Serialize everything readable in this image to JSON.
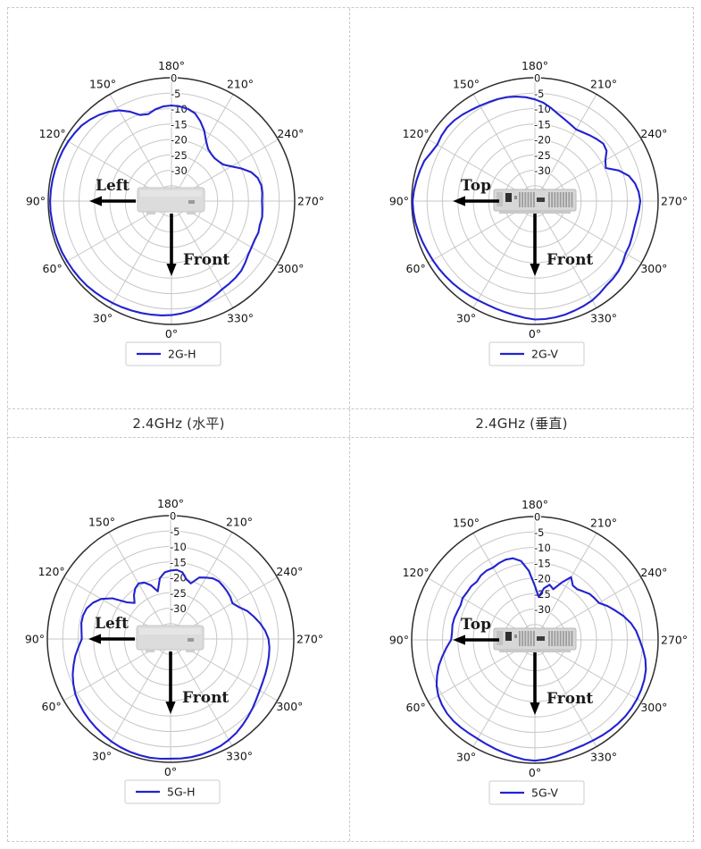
{
  "style": {
    "curve_blue": "#2222d0",
    "grid_gray": "#c7c7c7",
    "outer_ring": "#2e2e2e",
    "border_dash": "#c9c9c9",
    "label_text": "#141414"
  },
  "table": {
    "captions": [
      "2.4GHz (水平)",
      "2.4GHz (垂直)"
    ]
  },
  "chart_data": [
    {
      "type": "polar-line",
      "id": "2G-H",
      "legend_label": "2G-H",
      "device": "front-view",
      "annotations": {
        "side_label": "Left",
        "front_label": "Front"
      },
      "angle_ticks_deg": [
        0,
        30,
        60,
        90,
        120,
        150,
        180,
        210,
        240,
        270,
        300,
        330
      ],
      "angle_tick_labels": [
        "0°",
        "30°",
        "60°",
        "90°",
        "120°",
        "150°",
        "180°",
        "210°",
        "240°",
        "270°",
        "300°",
        "330°"
      ],
      "r_ticks": [
        0,
        -5,
        -10,
        -15,
        -20,
        -25,
        -30
      ],
      "r_tick_labels": [
        "0",
        "-5",
        "-10",
        "-15",
        "-20",
        "-25",
        "-30"
      ],
      "r_range": [
        -40,
        0
      ],
      "angle_step_deg": 5,
      "values_db": [
        -3.0,
        -2.8,
        -2.6,
        -2.4,
        -2.2,
        -2.0,
        -1.8,
        -1.6,
        -1.4,
        -1.2,
        -1.1,
        -1.0,
        -0.9,
        -0.8,
        -0.8,
        -0.7,
        -0.7,
        -0.6,
        -0.6,
        -0.7,
        -0.8,
        -0.9,
        -1.0,
        -1.1,
        -1.3,
        -1.6,
        -1.9,
        -2.6,
        -3.5,
        -4.6,
        -6.0,
        -8.0,
        -10.3,
        -10.8,
        -9.8,
        -9.2,
        -9.0,
        -9.2,
        -9.6,
        -10.5,
        -12.5,
        -14.8,
        -17.5,
        -19.3,
        -20.0,
        -20.3,
        -20.0,
        -19.4,
        -17.5,
        -15.0,
        -12.5,
        -11.0,
        -10.4,
        -10.4,
        -10.6,
        -10.4,
        -10.1,
        -10.3,
        -10.0,
        -10.2,
        -10.0,
        -9.6,
        -8.8,
        -8.0,
        -7.6,
        -7.3,
        -7.0,
        -6.3,
        -5.5,
        -4.6,
        -3.9,
        -3.4
      ]
    },
    {
      "type": "polar-line",
      "id": "2G-V",
      "legend_label": "2G-V",
      "device": "top-view",
      "annotations": {
        "side_label": "Top",
        "front_label": "Front"
      },
      "angle_ticks_deg": [
        0,
        30,
        60,
        90,
        120,
        150,
        180,
        210,
        240,
        270,
        300,
        330
      ],
      "angle_tick_labels": [
        "0°",
        "30°",
        "60°",
        "90°",
        "120°",
        "150°",
        "180°",
        "210°",
        "240°",
        "270°",
        "300°",
        "330°"
      ],
      "r_ticks": [
        0,
        -5,
        -10,
        -15,
        -20,
        -25,
        -30
      ],
      "r_tick_labels": [
        "0",
        "-5",
        "-10",
        "-15",
        "-20",
        "-25",
        "-30"
      ],
      "r_range": [
        -40,
        0
      ],
      "angle_step_deg": 5,
      "values_db": [
        -1.6,
        -2.0,
        -2.4,
        -2.7,
        -2.9,
        -3.0,
        -2.9,
        -2.7,
        -2.5,
        -2.3,
        -2.1,
        -1.9,
        -1.7,
        -1.5,
        -1.2,
        -0.9,
        -0.6,
        -0.4,
        -0.3,
        -0.6,
        -1.0,
        -1.4,
        -1.8,
        -2.8,
        -3.4,
        -3.0,
        -2.8,
        -3.0,
        -3.4,
        -3.9,
        -4.3,
        -4.6,
        -4.8,
        -5.1,
        -5.6,
        -6.2,
        -7.0,
        -8.0,
        -9.4,
        -10.8,
        -11.8,
        -12.6,
        -13.2,
        -12.8,
        -12.2,
        -11.6,
        -11.0,
        -11.6,
        -13.6,
        -14.6,
        -11.0,
        -8.4,
        -7.0,
        -6.2,
        -5.8,
        -6.1,
        -6.5,
        -6.6,
        -6.4,
        -6.1,
        -6.0,
        -5.2,
        -4.6,
        -4.3,
        -4.1,
        -3.4,
        -2.8,
        -2.5,
        -2.2,
        -1.9,
        -1.7,
        -1.6
      ]
    },
    {
      "type": "polar-line",
      "id": "5G-H",
      "legend_label": "5G-H",
      "device": "front-view",
      "annotations": {
        "side_label": "Left",
        "front_label": "Front"
      },
      "angle_ticks_deg": [
        0,
        30,
        60,
        90,
        120,
        150,
        180,
        210,
        240,
        270,
        300,
        330
      ],
      "angle_tick_labels": [
        "0°",
        "30°",
        "60°",
        "90°",
        "120°",
        "150°",
        "180°",
        "210°",
        "240°",
        "270°",
        "300°",
        "330°"
      ],
      "r_ticks": [
        0,
        -5,
        -10,
        -15,
        -20,
        -25,
        -30
      ],
      "r_tick_labels": [
        "0",
        "-5",
        "-10",
        "-15",
        "-20",
        "-25",
        "-30"
      ],
      "r_range": [
        -40,
        0
      ],
      "angle_step_deg": 5,
      "values_db": [
        -1.2,
        -1.0,
        -0.9,
        -1.0,
        -1.1,
        -1.3,
        -1.6,
        -2.0,
        -2.4,
        -2.8,
        -3.2,
        -3.7,
        -4.3,
        -5.2,
        -6.2,
        -7.4,
        -8.6,
        -10.0,
        -11.2,
        -11.0,
        -10.6,
        -10.6,
        -11.0,
        -12.2,
        -14.0,
        -17.0,
        -21.5,
        -23.5,
        -21.5,
        -20.0,
        -19.2,
        -19.8,
        -21.5,
        -24.0,
        -20.0,
        -18.3,
        -17.8,
        -17.5,
        -18.0,
        -20.0,
        -20.8,
        -18.0,
        -17.0,
        -16.0,
        -15.6,
        -15.8,
        -16.0,
        -16.3,
        -16.8,
        -15.5,
        -13.5,
        -12.0,
        -10.5,
        -9.2,
        -8.2,
        -7.8,
        -7.6,
        -7.4,
        -7.2,
        -7.0,
        -6.6,
        -6.0,
        -5.2,
        -4.4,
        -3.6,
        -2.8,
        -2.2,
        -1.7,
        -1.4,
        -1.2,
        -1.1,
        -1.1
      ]
    },
    {
      "type": "polar-line",
      "id": "5G-V",
      "legend_label": "5G-V",
      "device": "top-view",
      "annotations": {
        "side_label": "Top",
        "front_label": "Front"
      },
      "angle_ticks_deg": [
        0,
        30,
        60,
        90,
        120,
        150,
        180,
        210,
        240,
        270,
        300,
        330
      ],
      "angle_tick_labels": [
        "0°",
        "30°",
        "60°",
        "90°",
        "120°",
        "150°",
        "180°",
        "210°",
        "240°",
        "270°",
        "300°",
        "330°"
      ],
      "r_ticks": [
        0,
        -5,
        -10,
        -15,
        -20,
        -25,
        -30
      ],
      "r_tick_labels": [
        "0",
        "-5",
        "-10",
        "-15",
        "-20",
        "-25",
        "-30"
      ],
      "r_range": [
        -40,
        0
      ],
      "angle_step_deg": 5,
      "values_db": [
        -0.8,
        -1.0,
        -1.5,
        -2.0,
        -2.4,
        -2.7,
        -2.9,
        -2.9,
        -2.8,
        -2.7,
        -2.8,
        -3.2,
        -3.8,
        -4.8,
        -6.2,
        -7.7,
        -9.5,
        -11.2,
        -12.8,
        -13.0,
        -12.8,
        -12.9,
        -13.2,
        -13.4,
        -12.9,
        -13.1,
        -13.0,
        -13.3,
        -12.7,
        -12.6,
        -12.9,
        -12.5,
        -12.3,
        -12.6,
        -14.0,
        -17.5,
        -22.5,
        -26.0,
        -23.0,
        -21.5,
        -22.5,
        -19.5,
        -16.5,
        -18.5,
        -18.6,
        -17.8,
        -16.8,
        -16.4,
        -16.0,
        -14.0,
        -12.2,
        -10.2,
        -8.4,
        -7.0,
        -6.0,
        -4.8,
        -3.6,
        -2.7,
        -2.2,
        -1.9,
        -1.7,
        -1.6,
        -1.6,
        -1.7,
        -1.9,
        -2.1,
        -2.3,
        -2.4,
        -2.4,
        -2.1,
        -1.6,
        -1.1
      ]
    }
  ]
}
